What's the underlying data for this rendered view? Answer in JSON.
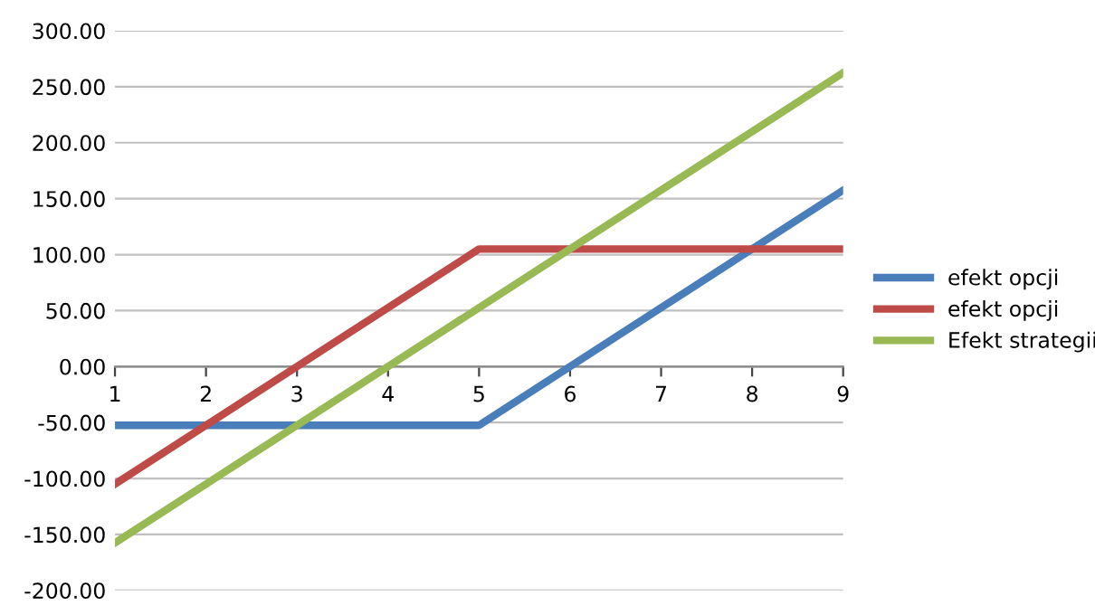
{
  "chart_data": {
    "type": "line",
    "categories": [
      "1",
      "2",
      "3",
      "4",
      "5",
      "6",
      "7",
      "8",
      "9"
    ],
    "series": [
      {
        "name": "efekt opcji",
        "color": "#4a7ebb",
        "values": [
          -52.5,
          -52.5,
          -52.5,
          -52.5,
          -52.5,
          0,
          52.5,
          105,
          157.5
        ]
      },
      {
        "name": "efekt opcji",
        "color": "#be4b48",
        "values": [
          -105,
          -52.5,
          0,
          52.5,
          105,
          105,
          105,
          105,
          105
        ]
      },
      {
        "name": "Efekt strategii",
        "color": "#98b954",
        "values": [
          -157.5,
          -105,
          -52.5,
          0,
          52.5,
          105,
          157.5,
          210,
          262.5
        ]
      }
    ],
    "ylim": [
      -200,
      300
    ],
    "yticks": [
      {
        "value": -200,
        "label": "-200.00"
      },
      {
        "value": -150,
        "label": "-150.00"
      },
      {
        "value": -100,
        "label": "-100.00"
      },
      {
        "value": -50,
        "label": "-50.00"
      },
      {
        "value": 0,
        "label": "0.00"
      },
      {
        "value": 50,
        "label": "50.00"
      },
      {
        "value": 100,
        "label": "100.00"
      },
      {
        "value": 150,
        "label": "150.00"
      },
      {
        "value": 200,
        "label": "200.00"
      },
      {
        "value": 250,
        "label": "250.00"
      },
      {
        "value": 300,
        "label": "300.00"
      }
    ],
    "grid": "y",
    "legend": "right",
    "marker": "none",
    "line_style": "solid"
  }
}
